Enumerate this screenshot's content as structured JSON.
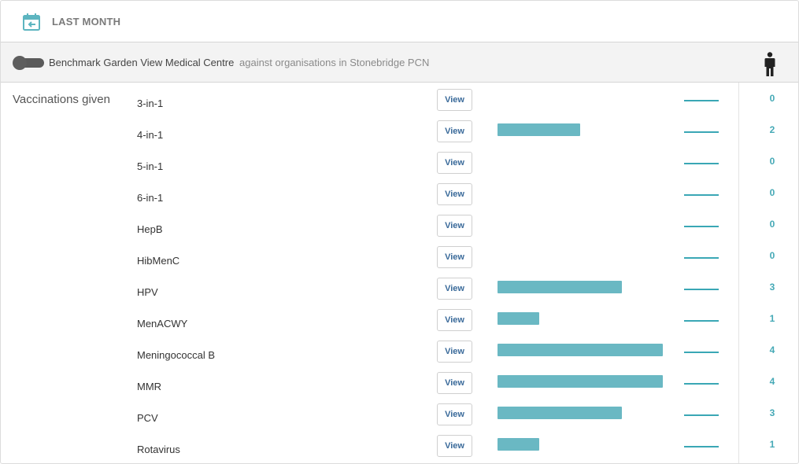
{
  "header": {
    "period_label": "LAST MONTH"
  },
  "benchmark": {
    "toggle_on": false,
    "label": "Benchmark Garden View Medical Centre",
    "context": "against organisations in Stonebridge PCN"
  },
  "section": {
    "title": "Vaccinations given"
  },
  "colors": {
    "accent": "#6ab8c3",
    "count": "#45a9b6",
    "button_text": "#3a6a9a"
  },
  "icons": {
    "period": "calendar-icon",
    "population": "person-icon"
  },
  "rows": [
    {
      "name": "3-in-1",
      "button": "View",
      "count": "0",
      "value": 0
    },
    {
      "name": "4-in-1",
      "button": "View",
      "count": "2",
      "value": 2
    },
    {
      "name": "5-in-1",
      "button": "View",
      "count": "0",
      "value": 0
    },
    {
      "name": "6-in-1",
      "button": "View",
      "count": "0",
      "value": 0
    },
    {
      "name": "HepB",
      "button": "View",
      "count": "0",
      "value": 0
    },
    {
      "name": "HibMenC",
      "button": "View",
      "count": "0",
      "value": 0
    },
    {
      "name": "HPV",
      "button": "View",
      "count": "3",
      "value": 3
    },
    {
      "name": "MenACWY",
      "button": "View",
      "count": "1",
      "value": 1
    },
    {
      "name": "Meningococcal B",
      "button": "View",
      "count": "4",
      "value": 4
    },
    {
      "name": "MMR",
      "button": "View",
      "count": "4",
      "value": 4
    },
    {
      "name": "PCV",
      "button": "View",
      "count": "3",
      "value": 3
    },
    {
      "name": "Rotavirus",
      "button": "View",
      "count": "1",
      "value": 1
    }
  ]
}
